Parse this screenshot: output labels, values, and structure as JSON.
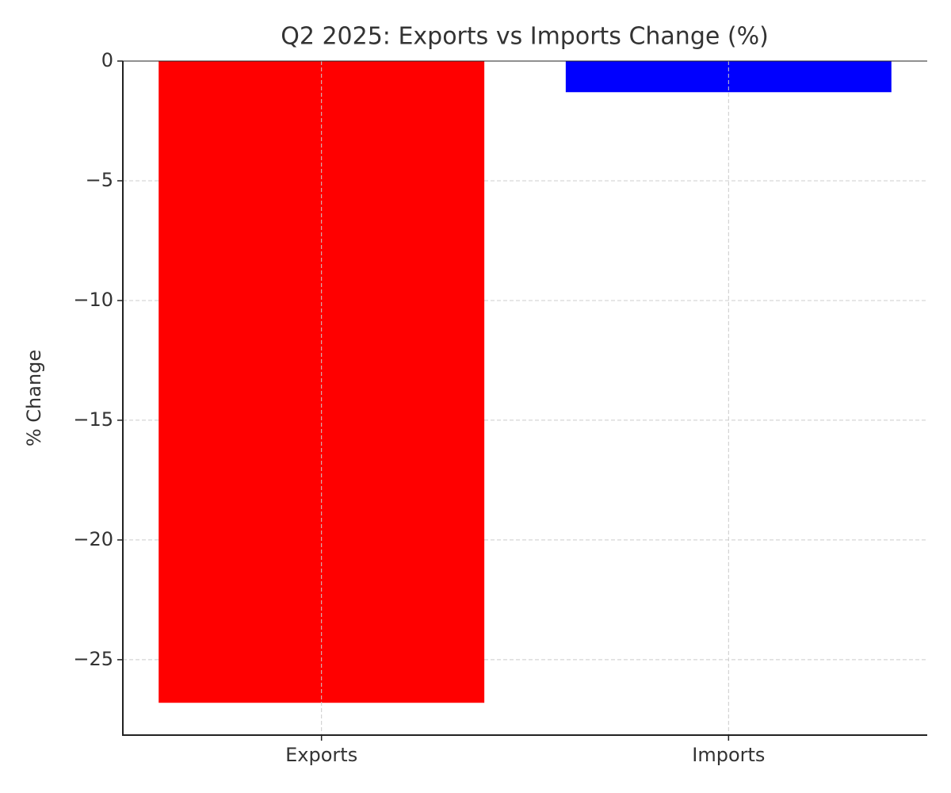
{
  "chart_data": {
    "type": "bar",
    "title": "Q2 2025: Exports vs Imports Change (%)",
    "ylabel": "% Change",
    "categories": [
      "Exports",
      "Imports"
    ],
    "values": [
      -26.8,
      -1.3
    ],
    "colors": [
      "#ff0000",
      "#0000ff"
    ],
    "ylim": [
      -28.15,
      0
    ],
    "yticks": [
      0,
      {
        "value": -5,
        "label": "−5"
      },
      {
        "value": -10,
        "label": "−10"
      },
      {
        "value": -15,
        "label": "−15"
      },
      {
        "value": -20,
        "label": "−20"
      },
      {
        "value": -25,
        "label": "−25"
      }
    ],
    "grid": true
  }
}
